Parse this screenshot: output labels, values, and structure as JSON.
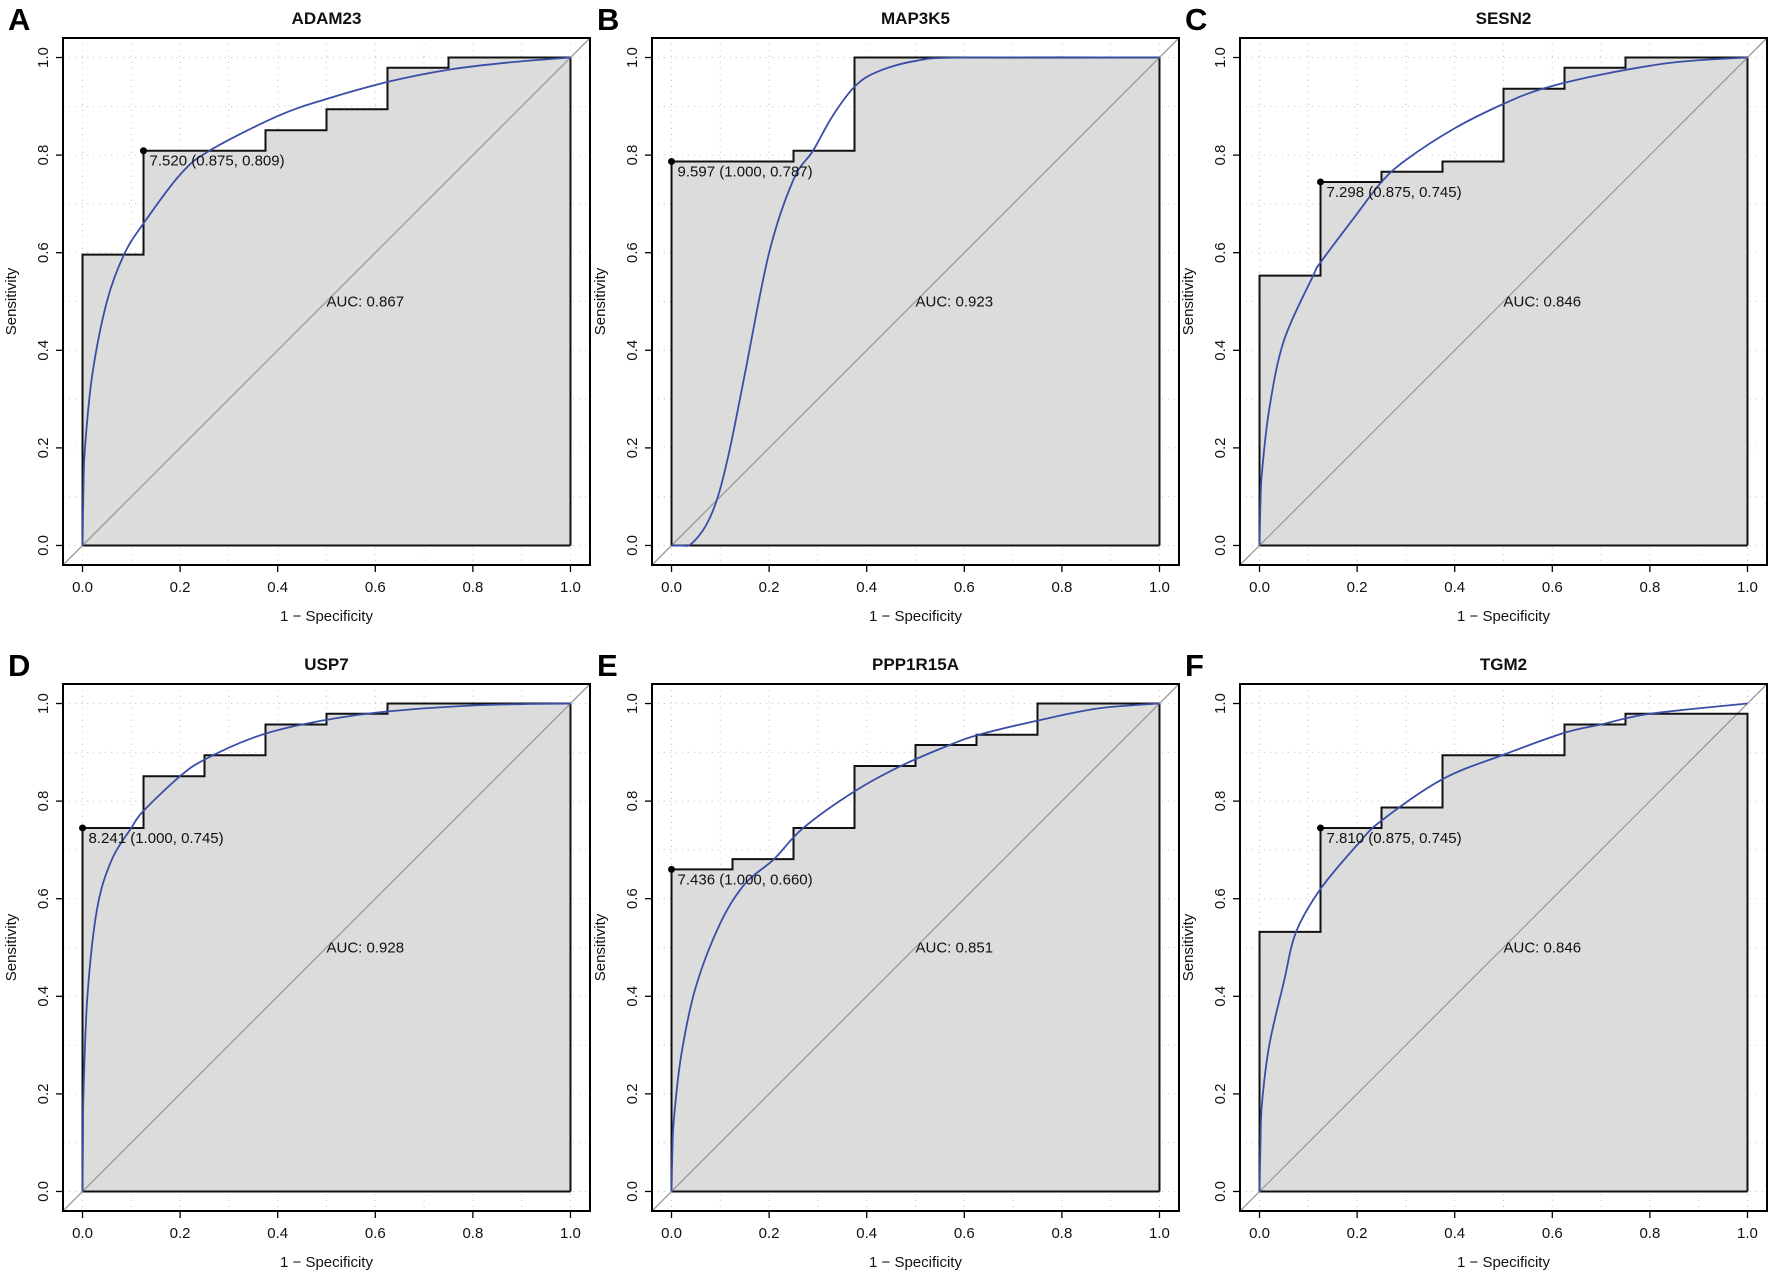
{
  "colors": {
    "smooth": "#3b4ea6",
    "fill": "#dcdcdc",
    "step": "#111111",
    "diagonal": "#9a9a9a",
    "grid": "#c8c8c8"
  },
  "chart_data": [
    {
      "type": "line",
      "panel_label": "A",
      "title": "ADAM23",
      "xlabel": "1 − Specificity",
      "ylabel": "Sensitivity",
      "xlim": [
        0,
        1
      ],
      "ylim": [
        0,
        1
      ],
      "xticks": [
        "0.0",
        "0.2",
        "0.4",
        "0.6",
        "0.8",
        "1.0"
      ],
      "yticks": [
        "0.0",
        "0.2",
        "0.4",
        "0.6",
        "0.8",
        "1.0"
      ],
      "grid": true,
      "auc_label": "AUC: 0.867",
      "threshold_label": "7.520 (0.875, 0.809)",
      "threshold_point": [
        0.125,
        0.809
      ],
      "empirical": [
        [
          0,
          0
        ],
        [
          0,
          0.596
        ],
        [
          0.125,
          0.596
        ],
        [
          0.125,
          0.809
        ],
        [
          0.375,
          0.809
        ],
        [
          0.375,
          0.851
        ],
        [
          0.5,
          0.851
        ],
        [
          0.5,
          0.894
        ],
        [
          0.625,
          0.894
        ],
        [
          0.625,
          0.979
        ],
        [
          0.75,
          0.979
        ],
        [
          0.75,
          1
        ],
        [
          1,
          1
        ]
      ],
      "smoothed": [
        [
          0,
          0
        ],
        [
          0.002,
          0.12
        ],
        [
          0.005,
          0.2
        ],
        [
          0.02,
          0.35
        ],
        [
          0.05,
          0.5
        ],
        [
          0.085,
          0.596
        ],
        [
          0.125,
          0.66
        ],
        [
          0.2,
          0.76
        ],
        [
          0.26,
          0.809
        ],
        [
          0.4,
          0.88
        ],
        [
          0.5,
          0.915
        ],
        [
          0.625,
          0.95
        ],
        [
          0.75,
          0.975
        ],
        [
          0.875,
          0.99
        ],
        [
          1,
          1
        ]
      ]
    },
    {
      "type": "line",
      "panel_label": "B",
      "title": "MAP3K5",
      "xlabel": "1 − Specificity",
      "ylabel": "Sensitivity",
      "xlim": [
        0,
        1
      ],
      "ylim": [
        0,
        1
      ],
      "xticks": [
        "0.0",
        "0.2",
        "0.4",
        "0.6",
        "0.8",
        "1.0"
      ],
      "yticks": [
        "0.0",
        "0.2",
        "0.4",
        "0.6",
        "0.8",
        "1.0"
      ],
      "grid": true,
      "auc_label": "AUC: 0.923",
      "threshold_label": "9.597 (1.000, 0.787)",
      "threshold_point": [
        0,
        0.787
      ],
      "empirical": [
        [
          0,
          0
        ],
        [
          0,
          0.787
        ],
        [
          0.25,
          0.787
        ],
        [
          0.25,
          0.809
        ],
        [
          0.375,
          0.809
        ],
        [
          0.375,
          1
        ],
        [
          1,
          1
        ]
      ],
      "smoothed": [
        [
          0,
          0
        ],
        [
          0.02,
          0
        ],
        [
          0.04,
          0.003
        ],
        [
          0.07,
          0.04
        ],
        [
          0.095,
          0.1
        ],
        [
          0.12,
          0.2
        ],
        [
          0.15,
          0.35
        ],
        [
          0.2,
          0.6
        ],
        [
          0.25,
          0.75
        ],
        [
          0.29,
          0.809
        ],
        [
          0.33,
          0.88
        ],
        [
          0.375,
          0.94
        ],
        [
          0.42,
          0.97
        ],
        [
          0.5,
          0.993
        ],
        [
          0.6,
          1
        ],
        [
          1,
          1
        ]
      ]
    },
    {
      "type": "line",
      "panel_label": "C",
      "title": "SESN2",
      "xlabel": "1 − Specificity",
      "ylabel": "Sensitivity",
      "xlim": [
        0,
        1
      ],
      "ylim": [
        0,
        1
      ],
      "xticks": [
        "0.0",
        "0.2",
        "0.4",
        "0.6",
        "0.8",
        "1.0"
      ],
      "yticks": [
        "0.0",
        "0.2",
        "0.4",
        "0.6",
        "0.8",
        "1.0"
      ],
      "grid": true,
      "auc_label": "AUC: 0.846",
      "threshold_label": "7.298 (0.875, 0.745)",
      "threshold_point": [
        0.125,
        0.745
      ],
      "empirical": [
        [
          0,
          0
        ],
        [
          0,
          0.553
        ],
        [
          0.125,
          0.553
        ],
        [
          0.125,
          0.745
        ],
        [
          0.25,
          0.745
        ],
        [
          0.25,
          0.766
        ],
        [
          0.375,
          0.766
        ],
        [
          0.375,
          0.787
        ],
        [
          0.5,
          0.787
        ],
        [
          0.5,
          0.936
        ],
        [
          0.625,
          0.936
        ],
        [
          0.625,
          0.979
        ],
        [
          0.75,
          0.979
        ],
        [
          0.75,
          1
        ],
        [
          1,
          1
        ]
      ],
      "smoothed": [
        [
          0,
          0
        ],
        [
          0.002,
          0.09
        ],
        [
          0.005,
          0.15
        ],
        [
          0.02,
          0.28
        ],
        [
          0.05,
          0.42
        ],
        [
          0.11,
          0.553
        ],
        [
          0.125,
          0.58
        ],
        [
          0.2,
          0.68
        ],
        [
          0.25,
          0.745
        ],
        [
          0.3,
          0.79
        ],
        [
          0.4,
          0.855
        ],
        [
          0.5,
          0.905
        ],
        [
          0.58,
          0.936
        ],
        [
          0.7,
          0.965
        ],
        [
          0.85,
          0.99
        ],
        [
          1,
          1
        ]
      ]
    },
    {
      "type": "line",
      "panel_label": "D",
      "title": "USP7",
      "xlabel": "1 − Specificity",
      "ylabel": "Sensitivity",
      "xlim": [
        0,
        1
      ],
      "ylim": [
        0,
        1
      ],
      "xticks": [
        "0.0",
        "0.2",
        "0.4",
        "0.6",
        "0.8",
        "1.0"
      ],
      "yticks": [
        "0.0",
        "0.2",
        "0.4",
        "0.6",
        "0.8",
        "1.0"
      ],
      "grid": true,
      "auc_label": "AUC: 0.928",
      "threshold_label": "8.241 (1.000, 0.745)",
      "threshold_point": [
        0,
        0.745
      ],
      "empirical": [
        [
          0,
          0
        ],
        [
          0,
          0.745
        ],
        [
          0.125,
          0.745
        ],
        [
          0.125,
          0.851
        ],
        [
          0.25,
          0.851
        ],
        [
          0.25,
          0.894
        ],
        [
          0.375,
          0.894
        ],
        [
          0.375,
          0.957
        ],
        [
          0.5,
          0.957
        ],
        [
          0.5,
          0.979
        ],
        [
          0.625,
          0.979
        ],
        [
          0.625,
          1
        ],
        [
          1,
          1
        ]
      ],
      "smoothed": [
        [
          0,
          0
        ],
        [
          0.001,
          0.12
        ],
        [
          0.002,
          0.2
        ],
        [
          0.01,
          0.4
        ],
        [
          0.03,
          0.58
        ],
        [
          0.06,
          0.68
        ],
        [
          0.1,
          0.745
        ],
        [
          0.125,
          0.78
        ],
        [
          0.2,
          0.851
        ],
        [
          0.25,
          0.885
        ],
        [
          0.35,
          0.93
        ],
        [
          0.45,
          0.957
        ],
        [
          0.6,
          0.981
        ],
        [
          0.8,
          0.996
        ],
        [
          1,
          1
        ]
      ]
    },
    {
      "type": "line",
      "panel_label": "E",
      "title": "PPP1R15A",
      "xlabel": "1 − Specificity",
      "ylabel": "Sensitivity",
      "xlim": [
        0,
        1
      ],
      "ylim": [
        0,
        1
      ],
      "xticks": [
        "0.0",
        "0.2",
        "0.4",
        "0.6",
        "0.8",
        "1.0"
      ],
      "yticks": [
        "0.0",
        "0.2",
        "0.4",
        "0.6",
        "0.8",
        "1.0"
      ],
      "grid": true,
      "auc_label": "AUC: 0.851",
      "threshold_label": "7.436 (1.000, 0.660)",
      "threshold_point": [
        0,
        0.66
      ],
      "empirical": [
        [
          0,
          0
        ],
        [
          0,
          0.66
        ],
        [
          0.125,
          0.66
        ],
        [
          0.125,
          0.681
        ],
        [
          0.25,
          0.681
        ],
        [
          0.25,
          0.745
        ],
        [
          0.375,
          0.745
        ],
        [
          0.375,
          0.872
        ],
        [
          0.5,
          0.872
        ],
        [
          0.5,
          0.915
        ],
        [
          0.625,
          0.915
        ],
        [
          0.625,
          0.936
        ],
        [
          0.75,
          0.936
        ],
        [
          0.75,
          1
        ],
        [
          1,
          1
        ]
      ],
      "smoothed": [
        [
          0,
          0
        ],
        [
          0.002,
          0.09
        ],
        [
          0.005,
          0.15
        ],
        [
          0.02,
          0.28
        ],
        [
          0.05,
          0.42
        ],
        [
          0.1,
          0.55
        ],
        [
          0.15,
          0.63
        ],
        [
          0.21,
          0.681
        ],
        [
          0.27,
          0.745
        ],
        [
          0.375,
          0.82
        ],
        [
          0.47,
          0.872
        ],
        [
          0.57,
          0.915
        ],
        [
          0.63,
          0.936
        ],
        [
          0.75,
          0.965
        ],
        [
          0.875,
          0.99
        ],
        [
          1,
          1
        ]
      ]
    },
    {
      "type": "line",
      "panel_label": "F",
      "title": "TGM2",
      "xlabel": "1 − Specificity",
      "ylabel": "Sensitivity",
      "xlim": [
        0,
        1
      ],
      "ylim": [
        0,
        1
      ],
      "xticks": [
        "0.0",
        "0.2",
        "0.4",
        "0.6",
        "0.8",
        "1.0"
      ],
      "yticks": [
        "0.0",
        "0.2",
        "0.4",
        "0.6",
        "0.8",
        "1.0"
      ],
      "grid": true,
      "auc_label": "AUC: 0.846",
      "threshold_label": "7.810 (0.875, 0.745)",
      "threshold_point": [
        0.125,
        0.745
      ],
      "empirical": [
        [
          0,
          0
        ],
        [
          0,
          0.532
        ],
        [
          0.125,
          0.532
        ],
        [
          0.125,
          0.745
        ],
        [
          0.25,
          0.745
        ],
        [
          0.25,
          0.787
        ],
        [
          0.375,
          0.787
        ],
        [
          0.375,
          0.894
        ],
        [
          0.625,
          0.894
        ],
        [
          0.625,
          0.957
        ],
        [
          0.75,
          0.957
        ],
        [
          0.75,
          0.979
        ],
        [
          1,
          0.979
        ],
        [
          1,
          0
        ]
      ],
      "smoothed": [
        [
          0,
          0
        ],
        [
          0.002,
          0.1
        ],
        [
          0.005,
          0.18
        ],
        [
          0.02,
          0.3
        ],
        [
          0.05,
          0.43
        ],
        [
          0.075,
          0.532
        ],
        [
          0.125,
          0.62
        ],
        [
          0.2,
          0.71
        ],
        [
          0.25,
          0.76
        ],
        [
          0.375,
          0.845
        ],
        [
          0.5,
          0.895
        ],
        [
          0.625,
          0.94
        ],
        [
          0.7,
          0.957
        ],
        [
          0.8,
          0.979
        ],
        [
          1,
          1
        ]
      ]
    }
  ]
}
